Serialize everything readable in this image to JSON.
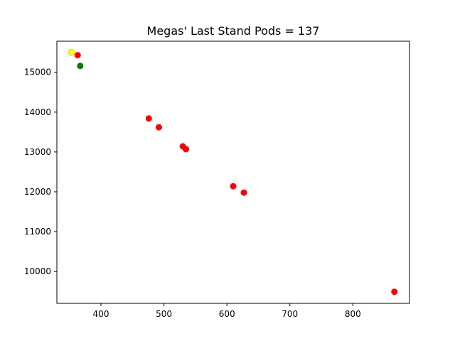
{
  "chart_data": {
    "type": "scatter",
    "title": "Megas' Last Stand Pods = 137",
    "xlabel": "",
    "ylabel": "",
    "xlim": [
      330,
      890
    ],
    "ylim": [
      9200,
      15780
    ],
    "xticks": [
      400,
      500,
      600,
      700,
      800
    ],
    "yticks": [
      10000,
      11000,
      12000,
      13000,
      14000,
      15000
    ],
    "grid": false,
    "series": [
      {
        "color": "#ff0000",
        "points": [
          {
            "x": 363,
            "y": 15430
          },
          {
            "x": 476,
            "y": 13840
          },
          {
            "x": 492,
            "y": 13620
          },
          {
            "x": 530,
            "y": 13140
          },
          {
            "x": 535,
            "y": 13070
          },
          {
            "x": 610,
            "y": 12140
          },
          {
            "x": 627,
            "y": 11980
          },
          {
            "x": 866,
            "y": 9490
          }
        ]
      },
      {
        "color": "#008000",
        "points": [
          {
            "x": 367,
            "y": 15160
          }
        ]
      },
      {
        "color": "#ffff00",
        "edge": "#bbbb00",
        "points": [
          {
            "x": 353,
            "y": 15500
          }
        ]
      }
    ]
  }
}
